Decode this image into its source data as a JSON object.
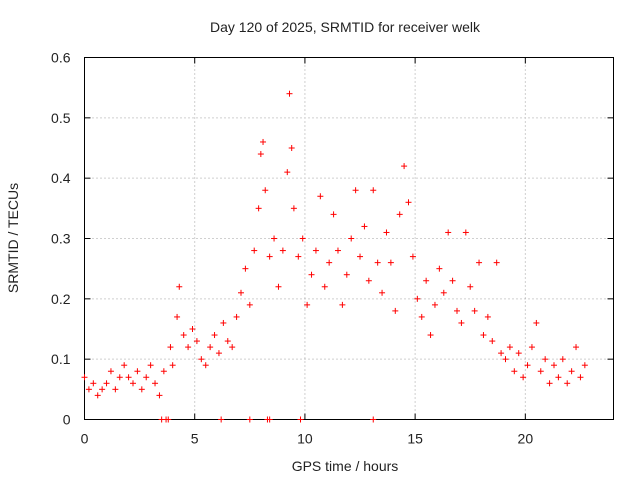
{
  "chart_data": {
    "type": "scatter",
    "title": "Day 120 of 2025, SRMTID for receiver welk",
    "xlabel": "GPS time / hours",
    "ylabel": "SRMTID / TECUs",
    "xlim": [
      0,
      24
    ],
    "ylim": [
      0,
      0.6
    ],
    "xticks": [
      0,
      5,
      10,
      15,
      20
    ],
    "xtick_labels": [
      "0",
      "5",
      "10",
      "15",
      "20"
    ],
    "yticks": [
      0,
      0.1,
      0.2,
      0.3,
      0.4,
      0.5,
      0.6
    ],
    "ytick_labels": [
      "0",
      "0.1",
      "0.2",
      "0.3",
      "0.4",
      "0.5",
      "0.6"
    ],
    "grid": true,
    "marker": "plus",
    "color": "#ff0000",
    "series": [
      {
        "name": "SRMTID",
        "points": [
          [
            0.0,
            0.07
          ],
          [
            0.2,
            0.05
          ],
          [
            0.4,
            0.06
          ],
          [
            0.6,
            0.04
          ],
          [
            0.8,
            0.05
          ],
          [
            1.0,
            0.06
          ],
          [
            1.2,
            0.08
          ],
          [
            1.4,
            0.05
          ],
          [
            1.6,
            0.07
          ],
          [
            1.8,
            0.09
          ],
          [
            2.0,
            0.07
          ],
          [
            2.2,
            0.06
          ],
          [
            2.4,
            0.08
          ],
          [
            2.6,
            0.05
          ],
          [
            2.8,
            0.07
          ],
          [
            3.0,
            0.09
          ],
          [
            3.2,
            0.06
          ],
          [
            3.4,
            0.04
          ],
          [
            3.6,
            0.08
          ],
          [
            3.9,
            0.12
          ],
          [
            4.0,
            0.09
          ],
          [
            4.2,
            0.17
          ],
          [
            4.3,
            0.22
          ],
          [
            4.5,
            0.14
          ],
          [
            4.7,
            0.12
          ],
          [
            4.9,
            0.15
          ],
          [
            5.1,
            0.13
          ],
          [
            5.3,
            0.1
          ],
          [
            5.5,
            0.09
          ],
          [
            5.7,
            0.12
          ],
          [
            5.9,
            0.14
          ],
          [
            6.1,
            0.11
          ],
          [
            6.3,
            0.16
          ],
          [
            6.5,
            0.13
          ],
          [
            6.7,
            0.12
          ],
          [
            6.9,
            0.17
          ],
          [
            7.1,
            0.21
          ],
          [
            7.3,
            0.25
          ],
          [
            7.5,
            0.19
          ],
          [
            7.7,
            0.28
          ],
          [
            7.9,
            0.35
          ],
          [
            8.0,
            0.44
          ],
          [
            8.1,
            0.46
          ],
          [
            8.2,
            0.38
          ],
          [
            8.4,
            0.27
          ],
          [
            8.6,
            0.3
          ],
          [
            8.8,
            0.22
          ],
          [
            9.0,
            0.28
          ],
          [
            9.2,
            0.41
          ],
          [
            9.3,
            0.54
          ],
          [
            9.4,
            0.45
          ],
          [
            9.5,
            0.35
          ],
          [
            9.7,
            0.27
          ],
          [
            9.9,
            0.3
          ],
          [
            10.1,
            0.19
          ],
          [
            10.3,
            0.24
          ],
          [
            10.5,
            0.28
          ],
          [
            10.7,
            0.37
          ],
          [
            10.9,
            0.22
          ],
          [
            11.1,
            0.26
          ],
          [
            11.3,
            0.34
          ],
          [
            11.5,
            0.28
          ],
          [
            11.7,
            0.19
          ],
          [
            11.9,
            0.24
          ],
          [
            12.1,
            0.3
          ],
          [
            12.3,
            0.38
          ],
          [
            12.5,
            0.27
          ],
          [
            12.7,
            0.32
          ],
          [
            12.9,
            0.23
          ],
          [
            13.1,
            0.38
          ],
          [
            13.3,
            0.26
          ],
          [
            13.5,
            0.21
          ],
          [
            13.7,
            0.31
          ],
          [
            13.9,
            0.26
          ],
          [
            14.1,
            0.18
          ],
          [
            14.3,
            0.34
          ],
          [
            14.5,
            0.42
          ],
          [
            14.7,
            0.36
          ],
          [
            14.9,
            0.27
          ],
          [
            15.1,
            0.2
          ],
          [
            15.3,
            0.17
          ],
          [
            15.5,
            0.23
          ],
          [
            15.7,
            0.14
          ],
          [
            15.9,
            0.19
          ],
          [
            16.1,
            0.25
          ],
          [
            16.3,
            0.21
          ],
          [
            16.5,
            0.31
          ],
          [
            16.7,
            0.23
          ],
          [
            16.9,
            0.18
          ],
          [
            17.1,
            0.16
          ],
          [
            17.3,
            0.31
          ],
          [
            17.5,
            0.22
          ],
          [
            17.7,
            0.18
          ],
          [
            17.9,
            0.26
          ],
          [
            18.1,
            0.14
          ],
          [
            18.3,
            0.17
          ],
          [
            18.5,
            0.13
          ],
          [
            18.7,
            0.26
          ],
          [
            18.9,
            0.11
          ],
          [
            19.1,
            0.1
          ],
          [
            19.3,
            0.12
          ],
          [
            19.5,
            0.08
          ],
          [
            19.7,
            0.11
          ],
          [
            19.9,
            0.07
          ],
          [
            20.1,
            0.09
          ],
          [
            20.3,
            0.12
          ],
          [
            20.5,
            0.16
          ],
          [
            20.7,
            0.08
          ],
          [
            20.9,
            0.1
          ],
          [
            21.1,
            0.06
          ],
          [
            21.3,
            0.09
          ],
          [
            21.5,
            0.07
          ],
          [
            21.7,
            0.1
          ],
          [
            21.9,
            0.06
          ],
          [
            22.1,
            0.08
          ],
          [
            22.3,
            0.12
          ],
          [
            22.5,
            0.07
          ],
          [
            22.7,
            0.09
          ]
        ]
      }
    ],
    "zero_markers_x": [
      3.5,
      3.7,
      3.8,
      6.2,
      7.5,
      8.3,
      8.4,
      9.8,
      13.1
    ]
  }
}
